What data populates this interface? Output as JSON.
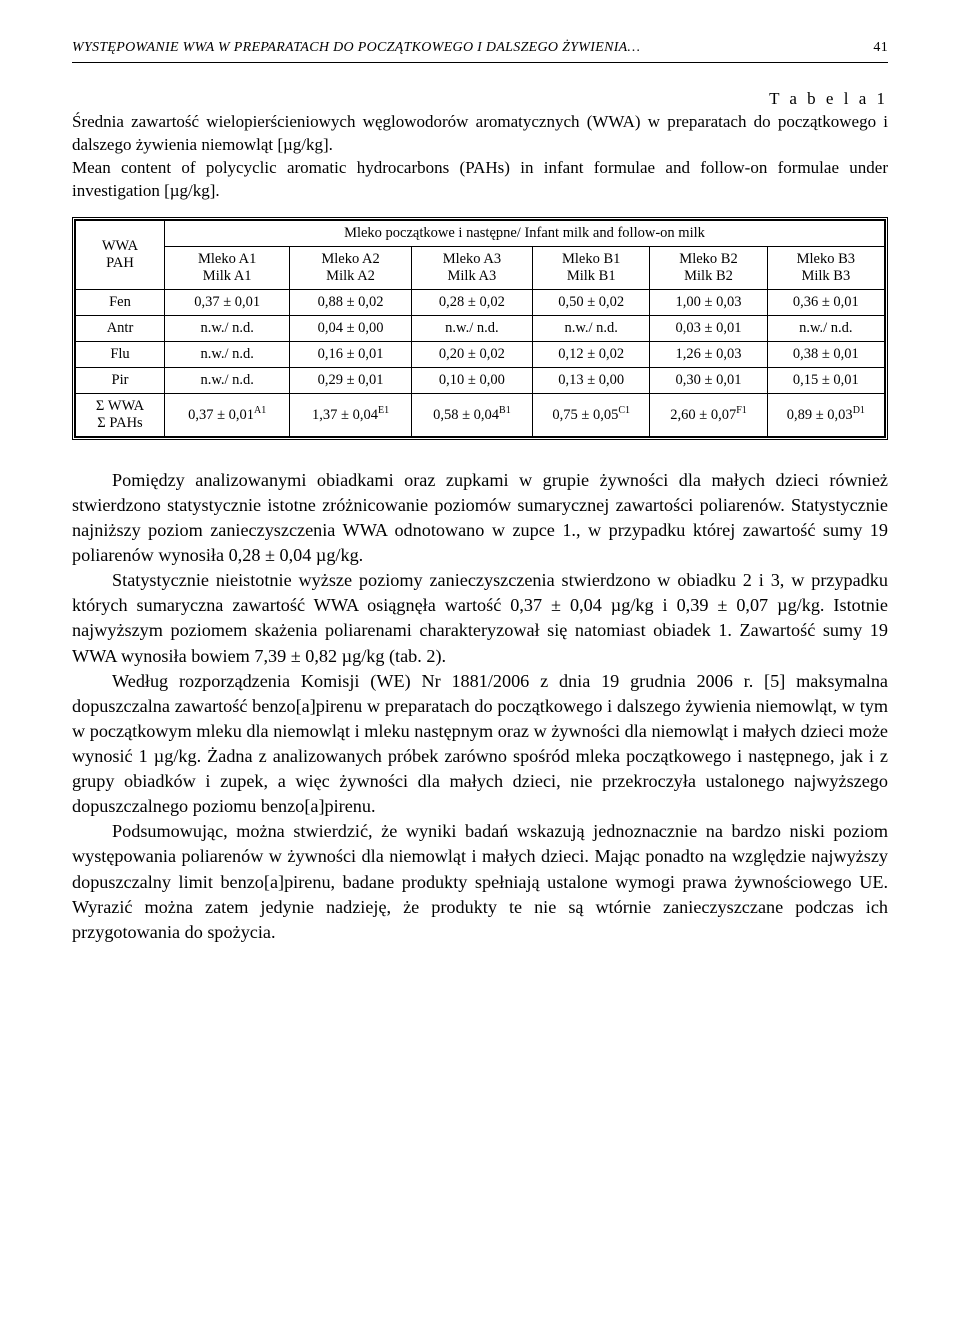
{
  "header": {
    "running_title": "WYSTĘPOWANIE WWA W PREPARATACH DO POCZĄTKOWEGO I DALSZEGO ŻYWIENIA…",
    "page_number": "41"
  },
  "table": {
    "label": "T a b e l a  1",
    "caption_pl": "Średnia zawartość wielopierścieniowych węglowodorów aromatycznych (WWA) w preparatach do początkowego i dalszego żywienia niemowląt [µg/kg].",
    "caption_en": "Mean content of polycyclic aromatic hydrocarbons (PAHs) in infant formulae and follow-on formulae under investigation [µg/kg].",
    "corner_pl": "WWA",
    "corner_en": "PAH",
    "spanning_header": "Mleko początkowe i następne/ Infant milk and follow-on milk",
    "columns": [
      {
        "pl": "Mleko A1",
        "en": "Milk A1"
      },
      {
        "pl": "Mleko A2",
        "en": "Milk A2"
      },
      {
        "pl": "Mleko A3",
        "en": "Milk A3"
      },
      {
        "pl": "Mleko B1",
        "en": "Milk B1"
      },
      {
        "pl": "Mleko B2",
        "en": "Milk B2"
      },
      {
        "pl": "Mleko B3",
        "en": "Milk B3"
      }
    ],
    "rows": [
      {
        "name": "Fen",
        "cells": [
          "0,37 ± 0,01",
          "0,88 ± 0,02",
          "0,28 ± 0,02",
          "0,50 ± 0,02",
          "1,00 ± 0,03",
          "0,36 ± 0,01"
        ]
      },
      {
        "name": "Antr",
        "cells": [
          "n.w./ n.d.",
          "0,04 ± 0,00",
          "n.w./ n.d.",
          "n.w./ n.d.",
          "0,03 ± 0,01",
          "n.w./ n.d."
        ]
      },
      {
        "name": "Flu",
        "cells": [
          "n.w./ n.d.",
          "0,16 ± 0,01",
          "0,20 ± 0,02",
          "0,12 ± 0,02",
          "1,26 ± 0,03",
          "0,38 ± 0,01"
        ]
      },
      {
        "name": "Pir",
        "cells": [
          "n.w./ n.d.",
          "0,29 ± 0,01",
          "0,10 ± 0,00",
          "0,13 ± 0,00",
          "0,30 ± 0,01",
          "0,15 ± 0,01"
        ]
      }
    ],
    "sum_row": {
      "name_pl": "Σ WWA",
      "name_en": "Σ PAHs",
      "cells": [
        {
          "val": "0,37 ± 0,01",
          "sup": "A1"
        },
        {
          "val": "1,37 ± 0,04",
          "sup": "E1"
        },
        {
          "val": "0,58 ± 0,04",
          "sup": "B1"
        },
        {
          "val": "0,75 ± 0,05",
          "sup": "C1"
        },
        {
          "val": "2,60 ± 0,07",
          "sup": "F1"
        },
        {
          "val": "0,89 ± 0,03",
          "sup": "D1"
        }
      ]
    }
  },
  "paragraphs": [
    "Pomiędzy analizowanymi obiadkami oraz zupkami w grupie żywności dla małych dzieci również stwierdzono statystycznie istotne zróżnicowanie poziomów sumarycznej zawartości poliarenów. Statystycznie najniższy poziom zanieczyszczenia WWA odnotowano w zupce 1., w przypadku której zawartość sumy 19 poliarenów wynosiła 0,28 ± 0,04 µg/kg.",
    "Statystycznie nieistotnie wyższe poziomy zanieczyszczenia stwierdzono w obiadku 2 i 3, w przypadku których sumaryczna zawartość WWA osiągnęła wartość 0,37 ± 0,04 µg/kg i 0,39 ± 0,07 µg/kg. Istotnie najwyższym poziomem skażenia poliarenami charakteryzował się natomiast obiadek 1. Zawartość sumy 19 WWA wynosiła bowiem 7,39 ± 0,82 µg/kg (tab. 2).",
    "Według rozporządzenia Komisji (WE) Nr 1881/2006 z dnia 19 grudnia 2006 r. [5] maksymalna dopuszczalna zawartość benzo[a]pirenu w preparatach do początkowego i dalszego żywienia niemowląt, w tym w początkowym mleku dla niemowląt i mleku następnym oraz w żywności dla niemowląt i małych dzieci może wynosić 1 µg/kg. Żadna z analizowanych próbek zarówno spośród mleka początkowego i następnego, jak i z grupy obiadków i zupek, a więc żywności dla małych dzieci, nie przekroczyła ustalonego najwyższego dopuszczalnego poziomu benzo[a]pirenu.",
    "Podsumowując, można stwierdzić, że wyniki badań wskazują jednoznacznie na bardzo niski poziom występowania poliarenów w żywności dla niemowląt i małych dzieci. Mając ponadto na względzie najwyższy dopuszczalny limit benzo[a]pirenu, badane produkty spełniają ustalone wymogi prawa żywnościowego UE. Wyrazić można zatem jedynie nadzieję, że produkty te nie są wtórnie zanieczyszczane podczas ich przygotowania do spożycia."
  ]
}
